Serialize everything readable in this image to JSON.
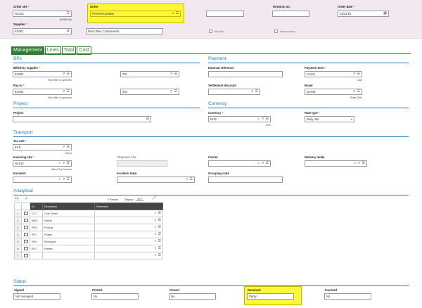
{
  "header": {
    "order_site": {
      "label": "Order site",
      "value": "NA012",
      "sub": "NA Bike/Toy"
    },
    "order": {
      "label": "Order",
      "value": "POANA0120086"
    },
    "revision": {
      "label": "Revision no."
    },
    "order_date": {
      "label": "Order date",
      "value": "03/22/18"
    },
    "supplier": {
      "label": "Supplier",
      "value": "ES001",
      "name": "Rotor Bike Components"
    },
    "intersite": {
      "label": "Intersite"
    },
    "intercompany": {
      "label": "Intercompany"
    }
  },
  "tabs": [
    {
      "label": "Management",
      "active": true
    },
    {
      "label": "Lines",
      "active": false
    },
    {
      "label": "Total",
      "active": false
    },
    {
      "label": "Cost",
      "active": false
    }
  ],
  "bps": {
    "title": "BPs",
    "billed_by": {
      "label": "Billed-by supplier",
      "value": "ES001",
      "sub": "Rotor Bike Components",
      "address": "001"
    },
    "pay_to": {
      "label": "Pay-to",
      "value": "ES001",
      "sub": "Rotor Bike Components",
      "address": "001"
    }
  },
  "payment": {
    "title": "Payment",
    "external_ref": {
      "label": "External reference",
      "value": ""
    },
    "payment_term": {
      "label": "Payment term",
      "value": "CASH",
      "sub": "Cash"
    },
    "settlement": {
      "label": "Settlement discount",
      "value": ""
    },
    "buyer": {
      "label": "Buyer",
      "value": "DIANE",
      "sub": "Diane Olivie"
    }
  },
  "project": {
    "title": "Project",
    "field": {
      "label": "Project",
      "value": ""
    }
  },
  "currency": {
    "title": "Currency",
    "currency": {
      "label": "Currency",
      "value": "EUR",
      "sub": "Euro"
    },
    "rate_type": {
      "label": "Rate type",
      "value": "Daily rate"
    }
  },
  "transport": {
    "title": "Transport",
    "tax_rule": {
      "label": "Tax rule",
      "value": "EXP",
      "sub": "Export"
    },
    "invoicing_site": {
      "label": "Invoicing site",
      "value": "NA012",
      "sub": "Bike & Toy Products"
    },
    "shipment_site": {
      "label": "Shipment site",
      "value": ""
    },
    "carrier": {
      "label": "Carrier",
      "value": ""
    },
    "delivery_mode": {
      "label": "Delivery mode",
      "value": ""
    },
    "incoterm": {
      "label": "Incoterm",
      "value": ""
    },
    "incoterm_town": {
      "label": "Incoterm town",
      "value": ""
    },
    "grouping_code": {
      "label": "Grouping code",
      "value": ""
    }
  },
  "analytical": {
    "title": "Analytical",
    "results": "6 Results",
    "display_label": "Display",
    "display_value": "10",
    "columns": [
      "Di...",
      "Description",
      "Dimension"
    ],
    "rows": [
      {
        "num": "1",
        "code": "CCT",
        "desc": "Cost Center"
      },
      {
        "num": "2",
        "code": "MAR",
        "desc": "Market"
      },
      {
        "num": "3",
        "code": "PRO",
        "desc": "Product"
      },
      {
        "num": "4",
        "code": "PRJ",
        "desc": "Project"
      },
      {
        "num": "5",
        "code": "ENV",
        "desc": "Envelopes"
      },
      {
        "num": "6",
        "code": "ENT",
        "desc": "Entities"
      },
      {
        "num": "7",
        "code": "",
        "desc": ""
      }
    ]
  },
  "status": {
    "title": "Status",
    "signed": {
      "label": "Signed",
      "value": "Not managed"
    },
    "printed": {
      "label": "Printed",
      "value": "No"
    },
    "closed": {
      "label": "Closed",
      "value": "No"
    },
    "received": {
      "label": "Received",
      "value": "Partly"
    },
    "invoiced": {
      "label": "Invoiced",
      "value": "No"
    }
  },
  "colors": {
    "accent_green": "#2e7d32",
    "section_blue": "#1c7fc4",
    "highlight": "#fbf83a",
    "header_bg": "#f1e9ef"
  }
}
